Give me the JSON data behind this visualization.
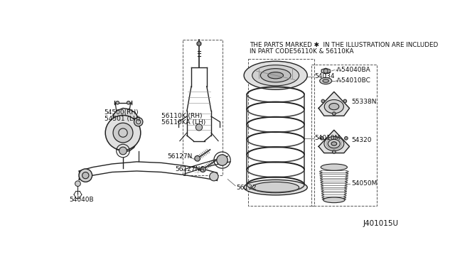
{
  "bg_color": "#ffffff",
  "note_line1": "THE PARTS MARKED ✱  IN THE ILLUSTRATION ARE INCLUDED",
  "note_line2": "IN PART CODE56110K & 56110KA",
  "diagram_id": "J401015U",
  "text_color": "#111111",
  "line_color": "#222222",
  "font_size": 6.5
}
